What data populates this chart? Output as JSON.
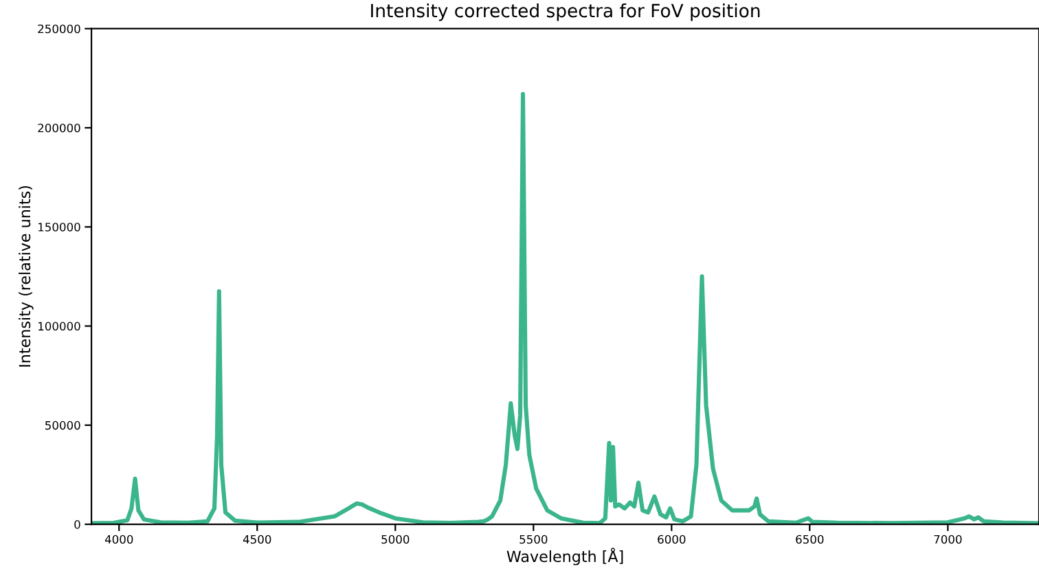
{
  "chart_data": {
    "type": "line",
    "title": "Intensity corrected spectra for FoV position",
    "xlabel": "Wavelength [Å]",
    "ylabel": "Intensity (relative units)",
    "xlim": [
      3900,
      7330
    ],
    "xticks": [
      4000,
      4500,
      5000,
      5500,
      6000,
      6500,
      7000
    ],
    "ylim": [
      0,
      250000
    ],
    "yticks": [
      0,
      50000,
      100000,
      150000,
      200000,
      250000
    ],
    "grid": false,
    "legend": false,
    "series": [
      {
        "color": "#3bb58c",
        "x": [
          3900,
          3980,
          4030,
          4045,
          4058,
          4070,
          4090,
          4150,
          4250,
          4320,
          4345,
          4355,
          4362,
          4370,
          4385,
          4420,
          4500,
          4650,
          4780,
          4830,
          4860,
          4880,
          4900,
          4950,
          5000,
          5100,
          5200,
          5300,
          5320,
          5335,
          5350,
          5380,
          5400,
          5418,
          5432,
          5442,
          5452,
          5462,
          5472,
          5485,
          5510,
          5550,
          5600,
          5680,
          5740,
          5760,
          5774,
          5780,
          5788,
          5796,
          5810,
          5830,
          5850,
          5865,
          5880,
          5895,
          5915,
          5938,
          5960,
          5980,
          5995,
          6010,
          6040,
          6070,
          6090,
          6110,
          6125,
          6150,
          6180,
          6220,
          6280,
          6300,
          6308,
          6320,
          6350,
          6450,
          6495,
          6510,
          6600,
          6800,
          7000,
          7060,
          7077,
          7095,
          7110,
          7130,
          7200,
          7330
        ],
        "values": [
          500,
          700,
          2000,
          8000,
          23000,
          7000,
          2500,
          1000,
          800,
          1500,
          8000,
          45000,
          117500,
          30000,
          6000,
          1800,
          900,
          1200,
          4000,
          8000,
          10500,
          10000,
          8500,
          5500,
          3000,
          1000,
          700,
          1200,
          1500,
          2500,
          4000,
          12000,
          30000,
          61000,
          45000,
          38000,
          55000,
          217000,
          60000,
          35000,
          18000,
          7000,
          3000,
          800,
          600,
          3000,
          41000,
          12000,
          39000,
          9000,
          10000,
          8000,
          11000,
          9000,
          21000,
          7000,
          6000,
          14000,
          5000,
          3500,
          8000,
          2500,
          1500,
          4000,
          30000,
          125000,
          60000,
          28000,
          12000,
          7000,
          7000,
          9000,
          13000,
          5000,
          1500,
          800,
          3000,
          1200,
          800,
          600,
          1000,
          3000,
          4000,
          2500,
          3500,
          1500,
          900,
          500
        ]
      }
    ]
  }
}
